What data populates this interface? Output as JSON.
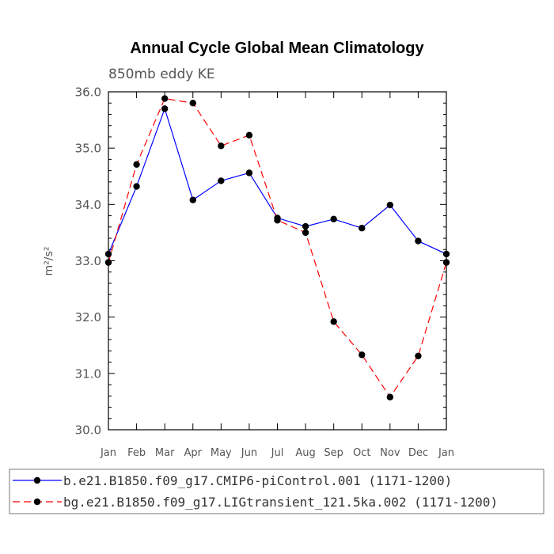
{
  "chart_data": {
    "type": "line",
    "title": "Annual Cycle Global Mean Climatology",
    "subtitle": "850mb eddy KE",
    "ylabel": "m²/s²",
    "xlabel": "",
    "ylim": [
      30.0,
      36.0
    ],
    "yticks": [
      "30.0",
      "31.0",
      "32.0",
      "33.0",
      "34.0",
      "35.0",
      "36.0"
    ],
    "categories": [
      "Jan",
      "Feb",
      "Mar",
      "Apr",
      "May",
      "Jun",
      "Jul",
      "Aug",
      "Sep",
      "Oct",
      "Nov",
      "Dec",
      "Jan"
    ],
    "series": [
      {
        "name": "b.e21.B1850.f09_g17.CMIP6-piControl.001 (1171-1200)",
        "color": "#0000ff",
        "dash": "solid",
        "values": [
          33.12,
          34.32,
          35.7,
          34.08,
          34.42,
          34.56,
          33.76,
          33.61,
          33.74,
          33.58,
          33.99,
          33.35,
          33.12
        ]
      },
      {
        "name": "bg.e21.B1850.f09_g17.LIGtransient_121.5ka.002 (1171-1200)",
        "color": "#ff0000",
        "dash": "dashed",
        "values": [
          32.97,
          34.71,
          35.88,
          35.8,
          35.04,
          35.23,
          33.72,
          33.5,
          31.92,
          31.33,
          30.58,
          31.31,
          32.97
        ]
      }
    ]
  }
}
